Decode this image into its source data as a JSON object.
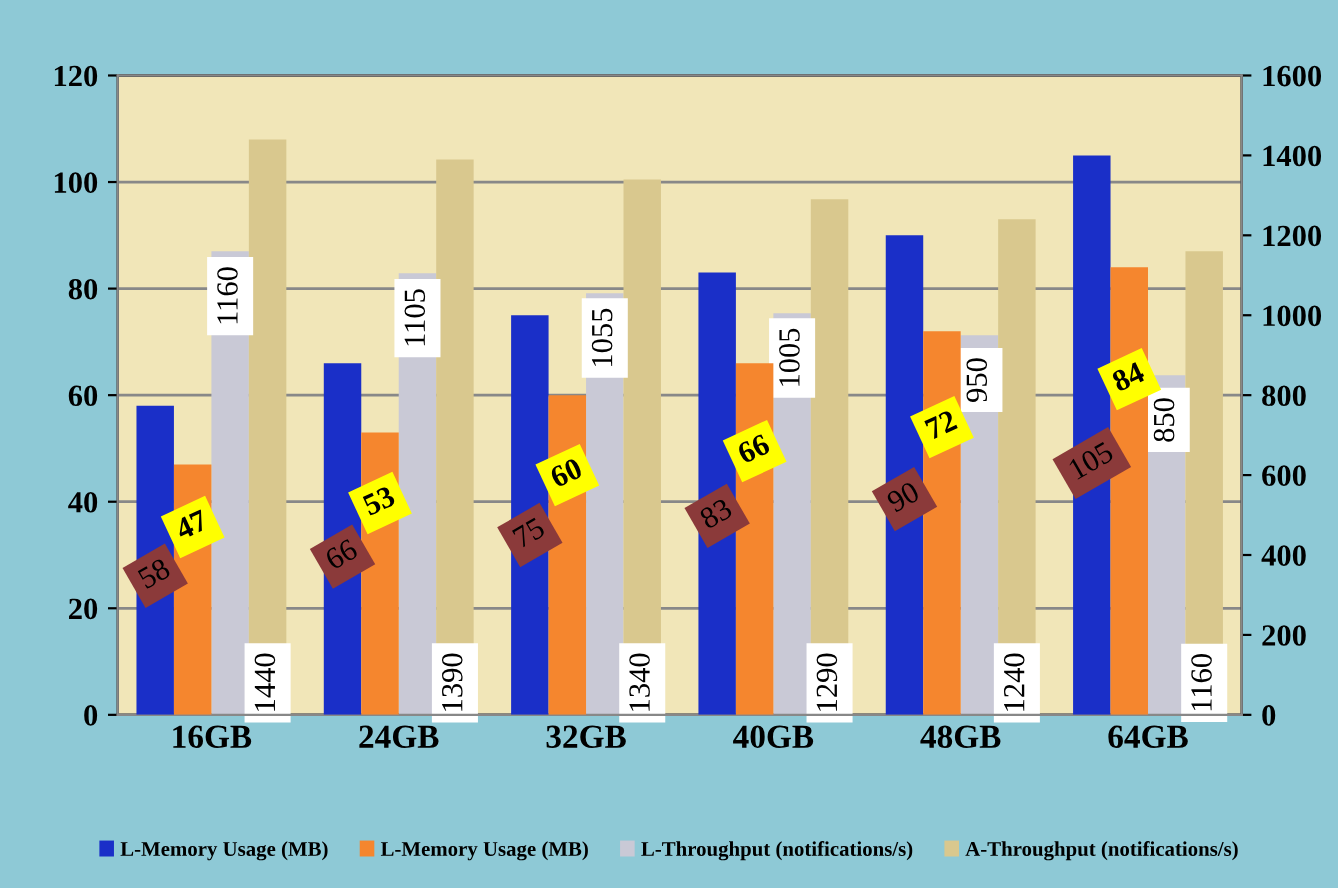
{
  "chart_data": {
    "type": "bar",
    "categories": [
      "16GB",
      "24GB",
      "32GB",
      "40GB",
      "48GB",
      "64GB"
    ],
    "series": [
      {
        "name": "L-Memory Usage (MB)",
        "color": "#1a2fc8",
        "values": [
          58,
          66,
          75,
          83,
          90,
          105
        ]
      },
      {
        "name": "L-Memory Usage (MB)",
        "color": "#f5862e",
        "values": [
          47,
          53,
          60,
          66,
          72,
          84
        ]
      },
      {
        "name": "L-Throughput (notifications/s)",
        "color": "#c9c9d6",
        "values": [
          1160,
          1105,
          1055,
          1005,
          950,
          850
        ],
        "axis": "y2"
      },
      {
        "name": "A-Throughput (notifications/s)",
        "color": "#d9c88e",
        "values": [
          1440,
          1390,
          1340,
          1290,
          1240,
          1160
        ],
        "axis": "y2"
      }
    ],
    "ylim": [
      0,
      120
    ],
    "yticks": [
      0,
      20,
      40,
      60,
      80,
      100,
      120
    ],
    "y2lim": [
      0,
      1600
    ],
    "y2ticks": [
      0,
      200,
      400,
      600,
      800,
      1000,
      1200,
      1400,
      1600
    ],
    "grid": "y",
    "legend": "bottom",
    "data_labels": true
  }
}
